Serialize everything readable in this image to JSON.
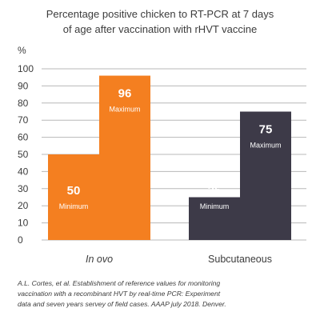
{
  "chart_data": {
    "type": "bar",
    "title_lines": [
      "Percentage positive chicken to RT-PCR at 7 days",
      "of age after vaccination with rHVT vaccine"
    ],
    "ylabel": "%",
    "ylim": [
      0,
      100
    ],
    "yticks": [
      0,
      10,
      20,
      30,
      40,
      50,
      60,
      70,
      80,
      90,
      100
    ],
    "grid": true,
    "groups": [
      {
        "label": "In ovo",
        "label_italic": true,
        "color": "#f47f20",
        "bars": [
          {
            "value": 50,
            "value_label": "50",
            "note": "Minimum"
          },
          {
            "value": 96,
            "value_label": "96",
            "note": "Maximum"
          }
        ]
      },
      {
        "label": "Subcutaneous",
        "label_italic": false,
        "color": "#3d3a48",
        "bars": [
          {
            "value": 25,
            "value_label": "25",
            "note": "Minimum"
          },
          {
            "value": 75,
            "value_label": "75",
            "note": "Maximum"
          }
        ]
      }
    ],
    "citation_lines": [
      "A.L. Cortes, et al. Establishment of reference values for monitoring",
      "vaccination with a recombinant HVT by real-time PCR: Experiment",
      "data and seven years servey of field cases. AAAP july 2018. Denver."
    ]
  }
}
